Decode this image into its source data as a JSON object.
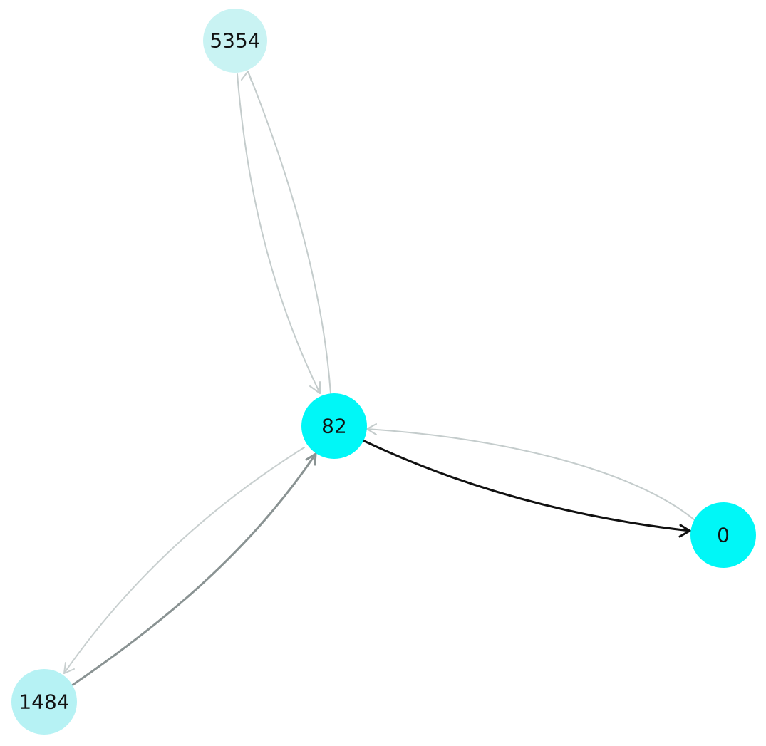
{
  "graph": {
    "nodes": [
      {
        "id": "5354",
        "label": "5354",
        "color": "#c9f3f3"
      },
      {
        "id": "82",
        "label": "82",
        "color": "#00f7f7"
      },
      {
        "id": "0",
        "label": "0",
        "color": "#00f7f7"
      },
      {
        "id": "1484",
        "label": "1484",
        "color": "#b6f2f4"
      }
    ],
    "edges": [
      {
        "source": "82",
        "target": "5354",
        "color": "#c4cccc"
      },
      {
        "source": "5354",
        "target": "82",
        "color": "#c4cccc"
      },
      {
        "source": "82",
        "target": "0",
        "color": "#111111"
      },
      {
        "source": "0",
        "target": "82",
        "color": "#c4cccc"
      },
      {
        "source": "1484",
        "target": "82",
        "color": "#8a9393"
      },
      {
        "source": "82",
        "target": "1484",
        "color": "#c8cfcf"
      }
    ]
  }
}
